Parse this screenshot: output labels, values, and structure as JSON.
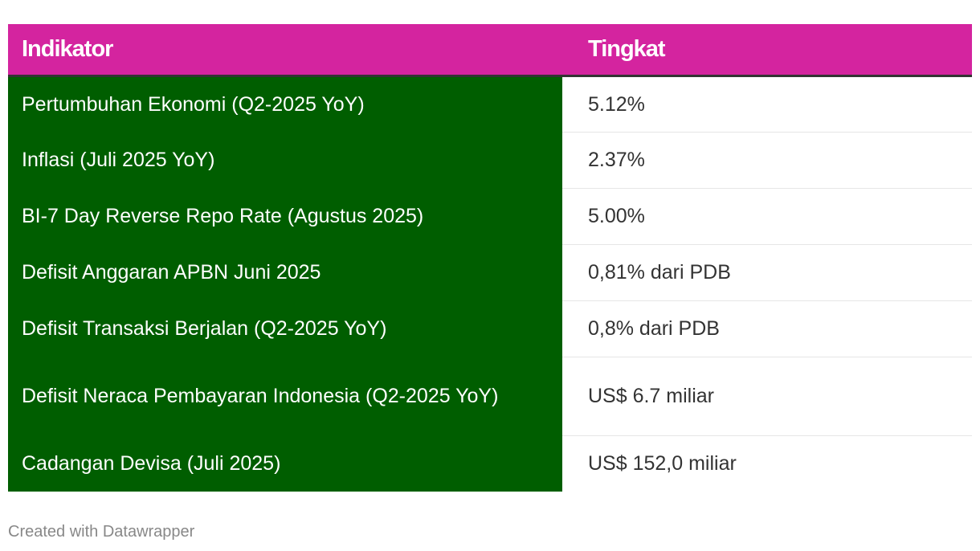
{
  "colors": {
    "header_bg": "#d4249f",
    "indicator_bg": "#005e00",
    "header_text": "#ffffff",
    "value_text": "#333333",
    "footer_text": "#888888"
  },
  "chart_data": {
    "type": "table",
    "columns": [
      "Indikator",
      "Tingkat"
    ],
    "rows": [
      {
        "indicator": "Pertumbuhan Ekonomi (Q2-2025 YoY)",
        "value": "5.12%"
      },
      {
        "indicator": "Inflasi (Juli 2025 YoY)",
        "value": "2.37%"
      },
      {
        "indicator": "BI-7 Day Reverse Repo Rate (Agustus 2025)",
        "value": "5.00%"
      },
      {
        "indicator": "Defisit Anggaran APBN Juni 2025",
        "value": "0,81% dari PDB"
      },
      {
        "indicator": "Defisit Transaksi Berjalan (Q2-2025 YoY)",
        "value": "0,8% dari PDB"
      },
      {
        "indicator": "Defisit Neraca Pembayaran Indonesia (Q2-2025 YoY)",
        "value": "US$ 6.7 miliar"
      },
      {
        "indicator": "Cadangan Devisa (Juli 2025)",
        "value": "US$ 152,0 miliar"
      }
    ]
  },
  "footer": "Created with Datawrapper"
}
